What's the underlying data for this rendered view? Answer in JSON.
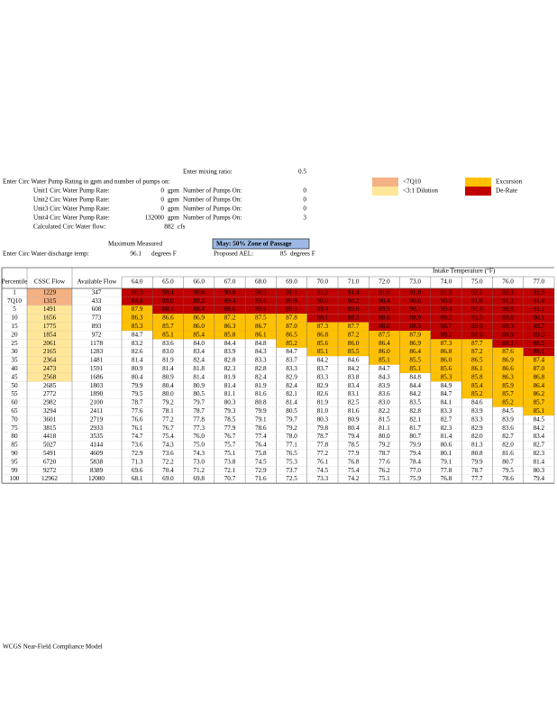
{
  "header": {
    "mixing_label": "Enter mixing ratio:",
    "mixing_ratio": "0.5",
    "pump_prompt": "Enter Circ Water Pump Rating in gpm and number of pumps on:",
    "pump_unit": "gpm",
    "pumps_on_label": "Number of Pumps On:",
    "units": [
      {
        "label": "Unit1 Circ Water Pump Rate:",
        "rate": "0",
        "pumps": "0"
      },
      {
        "label": "Unit2 Circ Water Pump Rate:",
        "rate": "0",
        "pumps": "0"
      },
      {
        "label": "Unit3 Circ Water Pump Rate:",
        "rate": "0",
        "pumps": "0"
      },
      {
        "label": "Unit4 Circ Water Pump Rate:",
        "rate": "132000",
        "pumps": "3"
      }
    ],
    "flow_label": "Calculated Circ Water flow:",
    "flow": "882",
    "flow_unit": "cfs",
    "max_label": "Maximum Measured",
    "zone_label": "May: 50% Zone of Passage",
    "zone_color": "#9db9e3",
    "discharge_label": "Enter Circ Water discharge temp:",
    "discharge_temp": "96.1",
    "temp_unit": "degrees F",
    "ael_label": "Proposed AEL:",
    "ael": 85
  },
  "legend": [
    {
      "label": "<7Q10",
      "color": "#f4b183"
    },
    {
      "label": "<3:1 Dilution",
      "color": "#ffe699"
    },
    {
      "label": "Excursion",
      "color": "#ffc000"
    },
    {
      "label": "De-Rate",
      "color": "#c00000"
    }
  ],
  "table": {
    "title": "Intake Temperature (°F)",
    "columns": [
      "Percentile",
      "CSSC Flow",
      "Available Flow"
    ],
    "temperatures": [
      "64.0",
      "65.0",
      "66.0",
      "67.0",
      "68.0",
      "69.0",
      "70.0",
      "71.0",
      "72.0",
      "73.0",
      "74.0",
      "75.0",
      "76.0",
      "77.0"
    ],
    "rows": [
      {
        "percentile": "1",
        "cssc_flow": "1229",
        "available_flow": "347",
        "flow_color": "#f4b183",
        "derate_from": 0,
        "temps": [
          "90.3",
          "90.4",
          "90.6",
          "90.8",
          "90.9",
          "91.1",
          "91.3",
          "91.4",
          "91.6",
          "91.8",
          "91.9",
          "92.1",
          "92.3",
          "92.5"
        ]
      },
      {
        "percentile": "7Q10",
        "cssc_flow": "1315",
        "available_flow": "433",
        "flow_color": "#f4b183",
        "derate_from": 0,
        "temps": [
          "88.8",
          "89.0",
          "89.2",
          "89.4",
          "89.6",
          "89.8",
          "90.0",
          "90.2",
          "90.4",
          "90.6",
          "90.8",
          "91.0",
          "91.2",
          "91.4"
        ]
      },
      {
        "percentile": "5",
        "cssc_flow": "1491",
        "available_flow": "608",
        "flow_color": "#ffe699",
        "derate_from": 1,
        "temps": [
          "87.9",
          "88.1",
          "88.4",
          "88.6",
          "88.9",
          "89.1",
          "89.4",
          "89.6",
          "89.9",
          "90.1",
          "90.4",
          "90.6",
          "90.9",
          "91.1"
        ]
      },
      {
        "percentile": "10",
        "cssc_flow": "1656",
        "available_flow": "773",
        "flow_color": "#ffe699",
        "derate_from": 6,
        "temps": [
          "86.3",
          "86.6",
          "86.9",
          "87.2",
          "87.5",
          "87.8",
          "88.1",
          "88.3",
          "88.6",
          "88.9",
          "89.2",
          "89.5",
          "89.8",
          "90.1"
        ]
      },
      {
        "percentile": "15",
        "cssc_flow": "1775",
        "available_flow": "893",
        "flow_color": "#ffe699",
        "derate_from": 8,
        "temps": [
          "85.3",
          "85.7",
          "86.0",
          "86.3",
          "86.7",
          "87.0",
          "87.3",
          "87.7",
          "88.0",
          "88.3",
          "88.7",
          "89.0",
          "89.3",
          "89.7"
        ]
      },
      {
        "percentile": "20",
        "cssc_flow": "1854",
        "available_flow": "972",
        "flow_color": "#ffe699",
        "derate_from": 10,
        "temps": [
          "84.7",
          "85.1",
          "85.4",
          "85.8",
          "86.1",
          "86.5",
          "86.8",
          "87.2",
          "87.5",
          "87.9",
          "88.2",
          "88.6",
          "88.9",
          "89.3"
        ]
      },
      {
        "percentile": "25",
        "cssc_flow": "2061",
        "available_flow": "1178",
        "flow_color": "#ffe699",
        "derate_from": 12,
        "temps": [
          "83.2",
          "83.6",
          "84.0",
          "84.4",
          "84.8",
          "85.2",
          "85.6",
          "86.0",
          "86.4",
          "86.9",
          "87.3",
          "87.7",
          "88.1",
          "88.5"
        ]
      },
      {
        "percentile": "30",
        "cssc_flow": "2165",
        "available_flow": "1283",
        "flow_color": "#ffe699",
        "derate_from": 13,
        "temps": [
          "82.6",
          "83.0",
          "83.4",
          "83.9",
          "84.3",
          "84.7",
          "85.1",
          "85.5",
          "86.0",
          "86.4",
          "86.8",
          "87.2",
          "87.6",
          "88.1"
        ]
      },
      {
        "percentile": "35",
        "cssc_flow": "2364",
        "available_flow": "1481",
        "flow_color": "#ffe699",
        "temps": [
          "81.4",
          "81.9",
          "82.4",
          "82.8",
          "83.3",
          "83.7",
          "84.2",
          "84.6",
          "85.1",
          "85.5",
          "86.0",
          "86.5",
          "86.9",
          "87.4"
        ]
      },
      {
        "percentile": "40",
        "cssc_flow": "2473",
        "available_flow": "1591",
        "flow_color": "#ffe699",
        "temps": [
          "80.9",
          "81.4",
          "81.8",
          "82.3",
          "82.8",
          "83.3",
          "83.7",
          "84.2",
          "84.7",
          "85.1",
          "85.6",
          "86.1",
          "86.6",
          "87.0"
        ]
      },
      {
        "percentile": "45",
        "cssc_flow": "2568",
        "available_flow": "1686",
        "flow_color": "#ffe699",
        "temps": [
          "80.4",
          "80.9",
          "81.4",
          "81.9",
          "82.4",
          "82.9",
          "83.3",
          "83.8",
          "84.3",
          "84.8",
          "85.3",
          "85.8",
          "86.3",
          "86.8"
        ]
      },
      {
        "percentile": "50",
        "cssc_flow": "2685",
        "available_flow": "1803",
        "temps": [
          "79.9",
          "80.4",
          "80.9",
          "81.4",
          "81.9",
          "82.4",
          "82.9",
          "83.4",
          "83.9",
          "84.4",
          "84.9",
          "85.4",
          "85.9",
          "86.4"
        ]
      },
      {
        "percentile": "55",
        "cssc_flow": "2772",
        "available_flow": "1890",
        "temps": [
          "79.5",
          "80.0",
          "80.5",
          "81.1",
          "81.6",
          "82.1",
          "82.6",
          "83.1",
          "83.6",
          "84.2",
          "84.7",
          "85.2",
          "85.7",
          "86.2"
        ]
      },
      {
        "percentile": "60",
        "cssc_flow": "2982",
        "available_flow": "2100",
        "temps": [
          "78.7",
          "79.2",
          "79.7",
          "80.3",
          "80.8",
          "81.4",
          "81.9",
          "82.5",
          "83.0",
          "83.5",
          "84.1",
          "84.6",
          "85.2",
          "85.7"
        ]
      },
      {
        "percentile": "65",
        "cssc_flow": "3294",
        "available_flow": "2411",
        "temps": [
          "77.6",
          "78.1",
          "78.7",
          "79.3",
          "79.9",
          "80.5",
          "81.0",
          "81.6",
          "82.2",
          "82.8",
          "83.3",
          "83.9",
          "84.5",
          "85.1"
        ]
      },
      {
        "percentile": "70",
        "cssc_flow": "3601",
        "available_flow": "2719",
        "temps": [
          "76.6",
          "77.2",
          "77.8",
          "78.5",
          "79.1",
          "79.7",
          "80.3",
          "80.9",
          "81.5",
          "82.1",
          "82.7",
          "83.3",
          "83.9",
          "84.5"
        ]
      },
      {
        "percentile": "75",
        "cssc_flow": "3815",
        "available_flow": "2933",
        "temps": [
          "76.1",
          "76.7",
          "77.3",
          "77.9",
          "78.6",
          "79.2",
          "79.8",
          "80.4",
          "81.1",
          "81.7",
          "82.3",
          "82.9",
          "83.6",
          "84.2"
        ]
      },
      {
        "percentile": "80",
        "cssc_flow": "4418",
        "available_flow": "3535",
        "temps": [
          "74.7",
          "75.4",
          "76.0",
          "76.7",
          "77.4",
          "78.0",
          "78.7",
          "79.4",
          "80.0",
          "80.7",
          "81.4",
          "82.0",
          "82.7",
          "83.4"
        ]
      },
      {
        "percentile": "85",
        "cssc_flow": "5027",
        "available_flow": "4144",
        "temps": [
          "73.6",
          "74.3",
          "75.0",
          "75.7",
          "76.4",
          "77.1",
          "77.8",
          "78.5",
          "79.2",
          "79.9",
          "80.6",
          "81.3",
          "82.0",
          "82.7"
        ]
      },
      {
        "percentile": "90",
        "cssc_flow": "5491",
        "available_flow": "4609",
        "temps": [
          "72.9",
          "73.6",
          "74.3",
          "75.1",
          "75.8",
          "76.5",
          "77.2",
          "77.9",
          "78.7",
          "79.4",
          "80.1",
          "80.8",
          "81.6",
          "82.3"
        ]
      },
      {
        "percentile": "95",
        "cssc_flow": "6720",
        "available_flow": "5838",
        "temps": [
          "71.3",
          "72.2",
          "73.0",
          "73.8",
          "74.5",
          "75.3",
          "76.1",
          "76.8",
          "77.6",
          "78.4",
          "79.1",
          "79.9",
          "80.7",
          "81.4"
        ]
      },
      {
        "percentile": "99",
        "cssc_flow": "9272",
        "available_flow": "8389",
        "temps": [
          "69.6",
          "70.4",
          "71.2",
          "72.1",
          "72.9",
          "73.7",
          "74.5",
          "75.4",
          "76.2",
          "77.0",
          "77.8",
          "78.7",
          "79.5",
          "80.3"
        ]
      },
      {
        "percentile": "100",
        "cssc_flow": "12962",
        "available_flow": "12080",
        "temps": [
          "68.1",
          "69.0",
          "69.8",
          "70.7",
          "71.6",
          "72.5",
          "73.3",
          "74.2",
          "75.1",
          "75.9",
          "76.8",
          "77.7",
          "78.6",
          "79.4"
        ]
      }
    ]
  },
  "footer": "WCGS Near-Field Compliance Model"
}
